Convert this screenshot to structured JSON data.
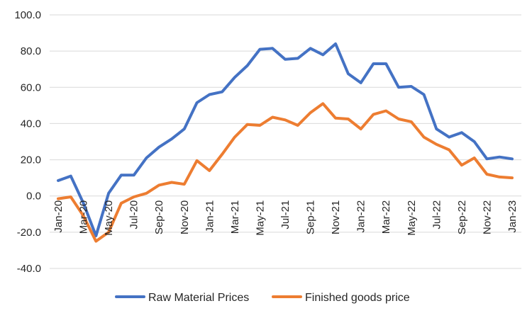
{
  "chart_data": {
    "type": "line",
    "title": "",
    "xlabel": "",
    "ylabel": "",
    "ylim": [
      -40,
      100
    ],
    "y_ticks": [
      "100.0",
      "80.0",
      "60.0",
      "40.0",
      "20.0",
      "0.0",
      "-20.0",
      "-40.0"
    ],
    "y_tick_values": [
      100,
      80,
      60,
      40,
      20,
      0,
      -20,
      -40
    ],
    "grid": "horizontal",
    "legend_position": "bottom",
    "categories": [
      "Jan-20",
      "Feb-20",
      "Mar-20",
      "Apr-20",
      "May-20",
      "Jun-20",
      "Jul-20",
      "Aug-20",
      "Sep-20",
      "Oct-20",
      "Nov-20",
      "Dec-20",
      "Jan-21",
      "Feb-21",
      "Mar-21",
      "Apr-21",
      "May-21",
      "Jun-21",
      "Jul-21",
      "Aug-21",
      "Sep-21",
      "Oct-21",
      "Nov-21",
      "Dec-21",
      "Jan-22",
      "Feb-22",
      "Mar-22",
      "Apr-22",
      "May-22",
      "Jun-22",
      "Jul-22",
      "Aug-22",
      "Sep-22",
      "Oct-22",
      "Nov-22",
      "Dec-22",
      "Jan-23"
    ],
    "x_tick_labels": [
      "Jan-20",
      "Mar-20",
      "May-20",
      "Jul-20",
      "Sep-20",
      "Nov-20",
      "Jan-21",
      "Mar-21",
      "May-21",
      "Jul-21",
      "Sep-21",
      "Nov-21",
      "Jan-22",
      "Mar-22",
      "May-22",
      "Jul-22",
      "Sep-22",
      "Nov-22",
      "Jan-23"
    ],
    "series": [
      {
        "name": "Raw Material Prices",
        "color": "#4472C4",
        "values": [
          8.5,
          11,
          -4,
          -22,
          1.5,
          11.5,
          11.5,
          21,
          27,
          31.5,
          37,
          51.5,
          56,
          57.5,
          65.5,
          72,
          81,
          81.5,
          75.5,
          76,
          81.5,
          78,
          84,
          67.5,
          62.5,
          73,
          73,
          60,
          60.5,
          56,
          37,
          32.5,
          35,
          30,
          20.5,
          21.5,
          20.5
        ]
      },
      {
        "name": "Finished goods price",
        "color": "#ED7D31",
        "values": [
          -1.5,
          -0.5,
          -11,
          -25,
          -20,
          -4,
          -0.5,
          1.5,
          6,
          7.5,
          6.5,
          19.5,
          14,
          23,
          32.5,
          39.5,
          39,
          43.5,
          42,
          39,
          46,
          51,
          43,
          42.5,
          37,
          45,
          47,
          42.5,
          41,
          32.5,
          28.5,
          25.5,
          17,
          21,
          12,
          10.5,
          10
        ]
      }
    ]
  }
}
